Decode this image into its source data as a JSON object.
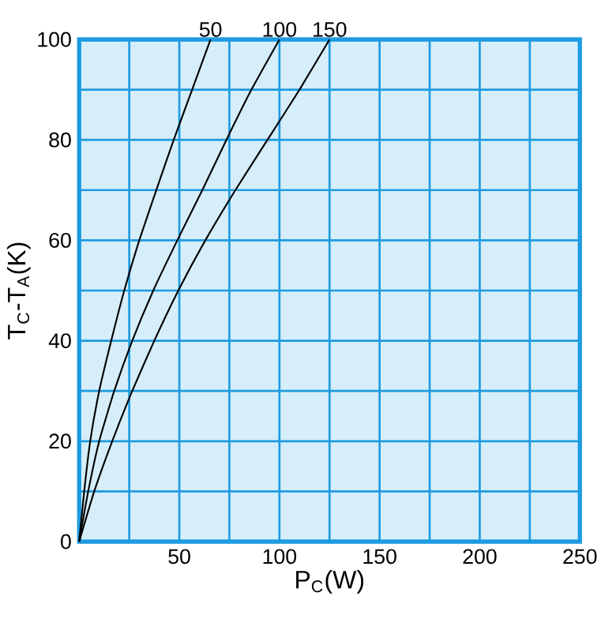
{
  "chart_data": {
    "type": "line",
    "xlabel": "P$_{C}$(W)",
    "ylabel": "T$_{C}$-T$_{A}$(K)",
    "xlim": [
      0,
      250
    ],
    "ylim": [
      0,
      100
    ],
    "xticks": [
      {
        "value": 0,
        "label": null
      },
      {
        "value": 25,
        "label": null
      },
      50,
      {
        "value": 75,
        "label": null
      },
      100,
      {
        "value": 125,
        "label": null
      },
      150,
      {
        "value": 175,
        "label": null
      },
      200,
      {
        "value": 225,
        "label": null
      },
      250
    ],
    "yticks": [
      0,
      {
        "value": 10,
        "label": null
      },
      20,
      {
        "value": 30,
        "label": null
      },
      40,
      {
        "value": 50,
        "label": null
      },
      60,
      {
        "value": 70,
        "label": null
      },
      80,
      {
        "value": 90,
        "label": null
      },
      100
    ],
    "grid": true,
    "series": [
      {
        "name": "50",
        "color": "#000000",
        "x": [
          0,
          2.5,
          5.5,
          10,
          16,
          22.5,
          30,
          38.5,
          47.2,
          56.4,
          65.6
        ],
        "values": [
          0,
          10,
          20,
          30,
          40,
          50,
          60,
          70,
          80,
          90,
          100
        ]
      },
      {
        "name": "100",
        "color": "#000000",
        "x": [
          0,
          4.5,
          10,
          17.5,
          26.5,
          37,
          49,
          61.5,
          73.5,
          86,
          100
        ],
        "values": [
          0,
          10,
          20,
          30,
          40,
          50,
          60,
          70,
          80,
          90,
          100
        ]
      },
      {
        "name": "150",
        "color": "#000000",
        "x": [
          0,
          7.5,
          16.5,
          26.5,
          37.5,
          49.5,
          63,
          78,
          94,
          110,
          125
        ],
        "values": [
          0,
          10,
          20,
          30,
          40,
          50,
          60,
          70,
          80,
          90,
          100
        ]
      }
    ]
  }
}
